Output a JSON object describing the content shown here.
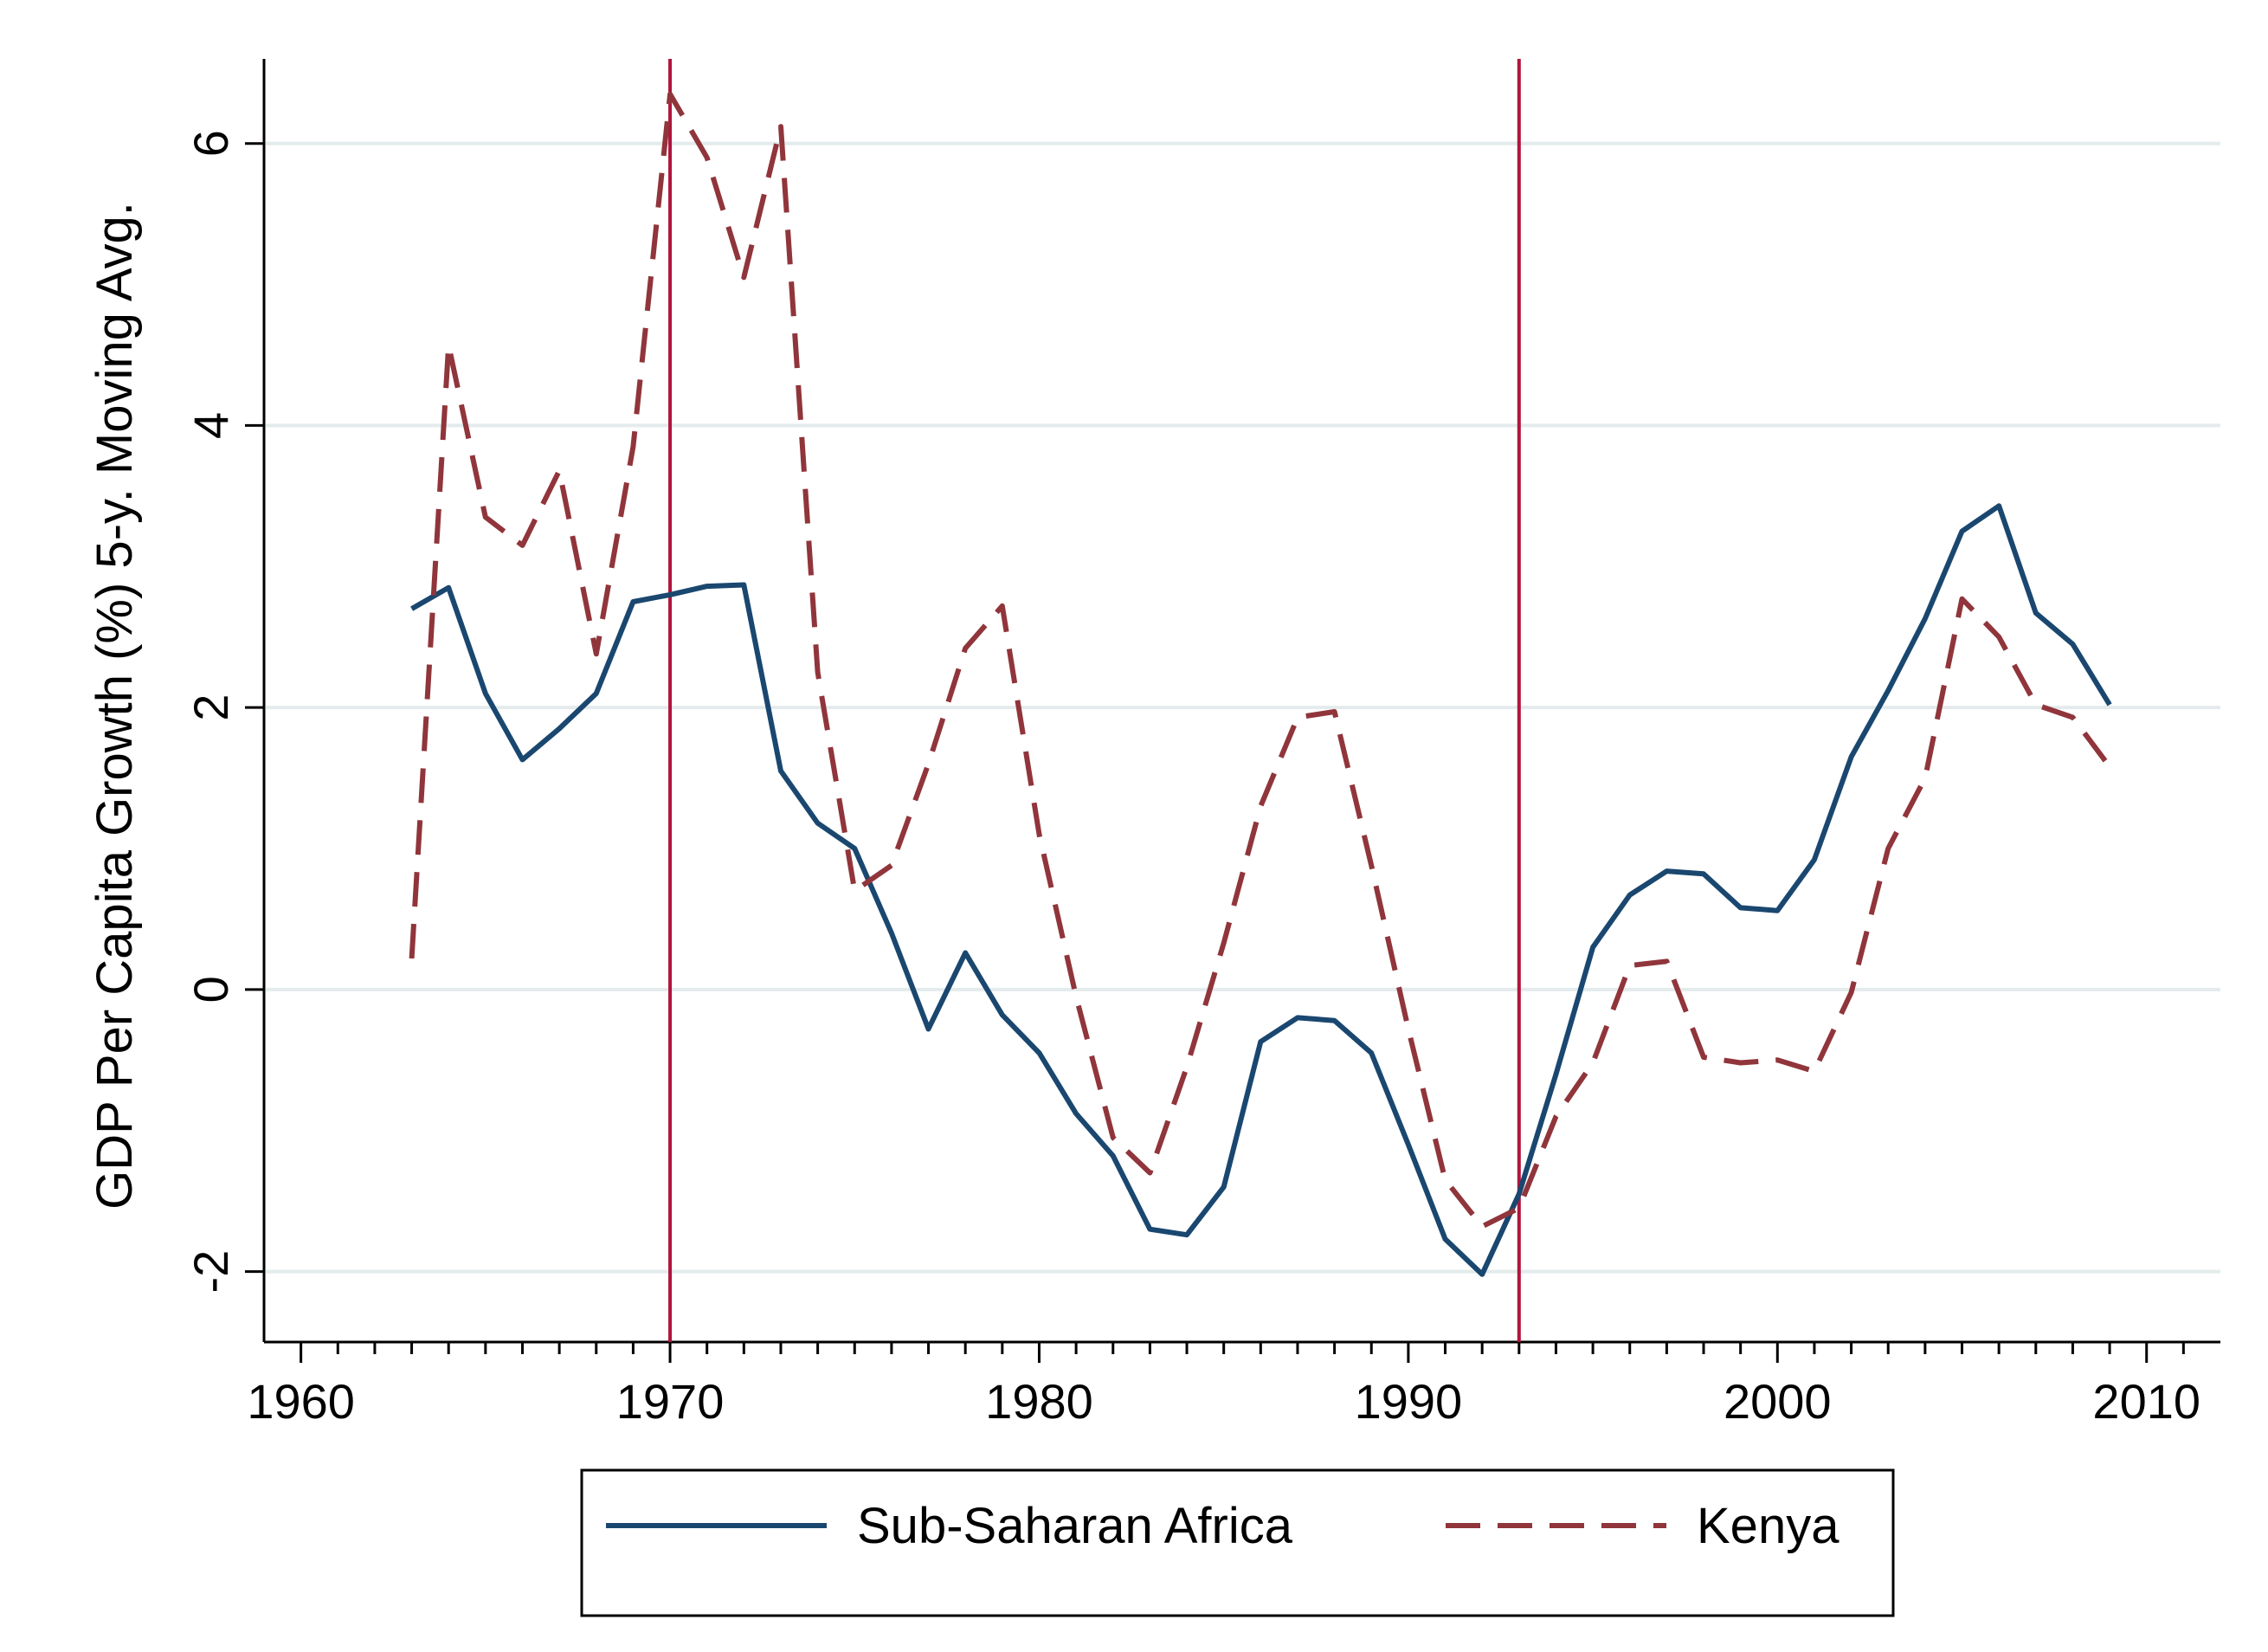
{
  "chart_data": {
    "type": "line",
    "title": "",
    "xlabel": "",
    "ylabel": "GDP Per Capita Growth (%) 5-y. Moving Avg.",
    "xlim": [
      1959,
      2012
    ],
    "ylim": [
      -2.5,
      6.6
    ],
    "x_major_ticks": [
      1960,
      1970,
      1980,
      1990,
      2000,
      2010
    ],
    "x_minor_ticks": [
      1961,
      1962,
      1963,
      1964,
      1965,
      1966,
      1967,
      1968,
      1969,
      1971,
      1972,
      1973,
      1974,
      1975,
      1976,
      1977,
      1978,
      1979,
      1981,
      1982,
      1983,
      1984,
      1985,
      1986,
      1987,
      1988,
      1989,
      1991,
      1992,
      1993,
      1994,
      1995,
      1996,
      1997,
      1998,
      1999,
      2001,
      2002,
      2003,
      2004,
      2005,
      2006,
      2007,
      2008,
      2009,
      2011
    ],
    "x_tick_labels": [
      "1960",
      "1970",
      "1980",
      "1990",
      "2000",
      "2010"
    ],
    "y_ticks": [
      -2,
      0,
      2,
      4,
      6
    ],
    "y_tick_labels": [
      "-2",
      "0",
      "2",
      "4",
      "6"
    ],
    "grid": "horizontal",
    "vertical_lines": [
      1970,
      1993
    ],
    "legend_position": "bottom",
    "series": [
      {
        "name": "Sub-Saharan Africa",
        "color": "#1a476f",
        "style": "solid",
        "x": [
          1963,
          1964,
          1965,
          1966,
          1967,
          1968,
          1969,
          1970,
          1971,
          1972,
          1973,
          1974,
          1975,
          1976,
          1977,
          1978,
          1979,
          1980,
          1981,
          1982,
          1983,
          1984,
          1985,
          1986,
          1987,
          1988,
          1989,
          1990,
          1991,
          1992,
          1993,
          1994,
          1995,
          1996,
          1997,
          1998,
          1999,
          2000,
          2001,
          2002,
          2003,
          2004,
          2005,
          2006,
          2007,
          2008,
          2009
        ],
        "values": [
          2.7,
          2.85,
          2.1,
          1.63,
          1.85,
          2.1,
          2.75,
          2.8,
          2.86,
          2.87,
          1.55,
          1.18,
          1.0,
          0.4,
          -0.28,
          0.26,
          -0.18,
          -0.45,
          -0.88,
          -1.18,
          -1.7,
          -1.74,
          -1.4,
          -0.37,
          -0.2,
          -0.22,
          -0.45,
          -1.1,
          -1.77,
          -2.02,
          -1.45,
          -0.6,
          0.3,
          0.67,
          0.84,
          0.82,
          0.58,
          0.56,
          0.92,
          1.65,
          2.12,
          2.63,
          3.25,
          3.43,
          2.67,
          2.45,
          2.02
        ]
      },
      {
        "name": "Kenya",
        "color": "#90353b",
        "style": "dashed",
        "x": [
          1963,
          1964,
          1965,
          1966,
          1967,
          1968,
          1969,
          1970,
          1971,
          1972,
          1973,
          1974,
          1975,
          1976,
          1977,
          1978,
          1979,
          1980,
          1981,
          1982,
          1983,
          1984,
          1985,
          1986,
          1987,
          1988,
          1989,
          1990,
          1991,
          1992,
          1993,
          1994,
          1995,
          1996,
          1997,
          1998,
          1999,
          2000,
          2001,
          2002,
          2003,
          2004,
          2005,
          2006,
          2007,
          2008,
          2009
        ],
        "values": [
          0.22,
          4.57,
          3.35,
          3.15,
          3.68,
          2.38,
          3.85,
          6.35,
          5.9,
          5.05,
          6.12,
          2.25,
          0.7,
          0.88,
          1.6,
          2.42,
          2.72,
          1.1,
          -0.05,
          -1.05,
          -1.3,
          -0.55,
          0.33,
          1.3,
          1.93,
          1.97,
          0.88,
          -0.28,
          -1.35,
          -1.68,
          -1.55,
          -0.9,
          -0.52,
          0.17,
          0.2,
          -0.48,
          -0.52,
          -0.5,
          -0.58,
          -0.02,
          1.0,
          1.5,
          2.77,
          2.5,
          2.02,
          1.93,
          1.58
        ]
      }
    ],
    "reference_line_color": "#b0143c",
    "grid_color": "#e4ebec"
  }
}
